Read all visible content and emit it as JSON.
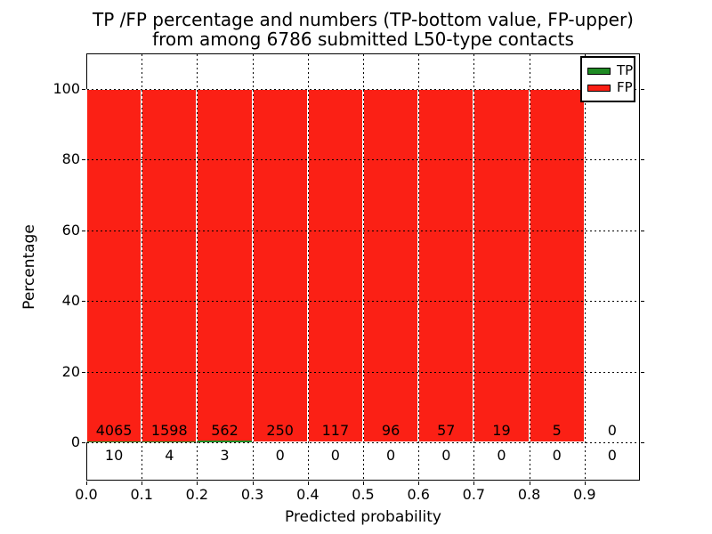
{
  "figure": {
    "title_line1": "TP /FP percentage and numbers (TP-bottom value, FP-upper)",
    "title_line2": "from among 6786 submitted L50-type contacts",
    "xlabel": "Predicted probability",
    "ylabel": "Percentage"
  },
  "chart_data": {
    "type": "bar",
    "stacked": true,
    "title": "TP /FP percentage and numbers (TP-bottom value, FP-upper) from among 6786 submitted L50-type contacts",
    "xlabel": "Predicted probability",
    "ylabel": "Percentage",
    "total_contacts": 6786,
    "bin_width": 0.1,
    "bin_starts": [
      0.0,
      0.1,
      0.2,
      0.3,
      0.4,
      0.5,
      0.6,
      0.7,
      0.8,
      0.9
    ],
    "series": [
      {
        "name": "TP",
        "color": "#1f8b24",
        "counts": [
          10,
          4,
          3,
          0,
          0,
          0,
          0,
          0,
          0,
          0
        ]
      },
      {
        "name": "FP",
        "color": "#fb2015",
        "counts": [
          4065,
          1598,
          562,
          250,
          117,
          96,
          57,
          19,
          5,
          0
        ]
      }
    ],
    "value_is_percent_of_bin_total": true,
    "xticks": [
      "0.0",
      "0.1",
      "0.2",
      "0.3",
      "0.4",
      "0.5",
      "0.6",
      "0.7",
      "0.8",
      "0.9"
    ],
    "yticks": [
      0,
      20,
      40,
      60,
      80,
      100
    ],
    "xlim": [
      0.0,
      1.0
    ],
    "ylim": [
      -11,
      110
    ],
    "grid": true,
    "grid_style": "dotted",
    "legend_position": "upper right",
    "axis_color": "#000000",
    "background_color": "#ffffff"
  }
}
